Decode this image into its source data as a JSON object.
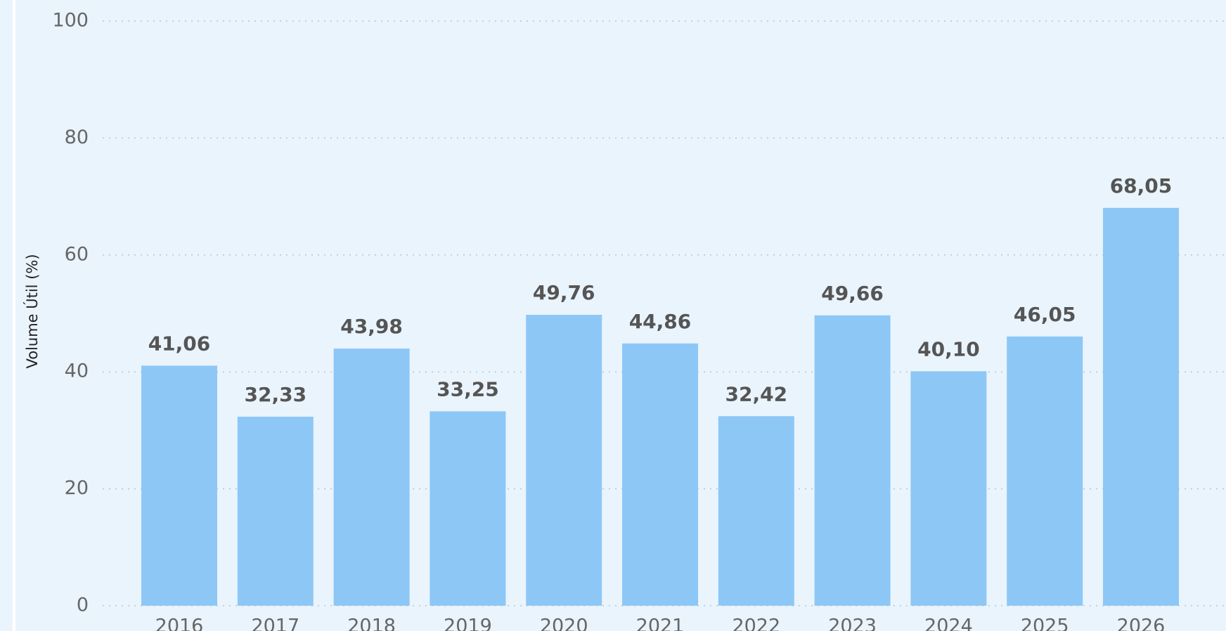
{
  "chart_data": {
    "type": "bar",
    "y_axis_label": "Volume Útil (%)",
    "categories": [
      "2016",
      "2017",
      "2018",
      "2019",
      "2020",
      "2021",
      "2022",
      "2023",
      "2024",
      "2025",
      "2026"
    ],
    "values": [
      41.06,
      32.33,
      43.98,
      33.25,
      49.76,
      44.86,
      32.42,
      49.66,
      40.1,
      46.05,
      68.05
    ],
    "value_labels": [
      "41,06",
      "32,33",
      "43,98",
      "33,25",
      "49,76",
      "44,86",
      "32,42",
      "49,66",
      "40,10",
      "46,05",
      "68,05"
    ],
    "color": "#8dc7f6",
    "ylim": [
      0,
      100
    ],
    "yticks": [
      0,
      20,
      40,
      60,
      80,
      100
    ],
    "grid": true
  }
}
